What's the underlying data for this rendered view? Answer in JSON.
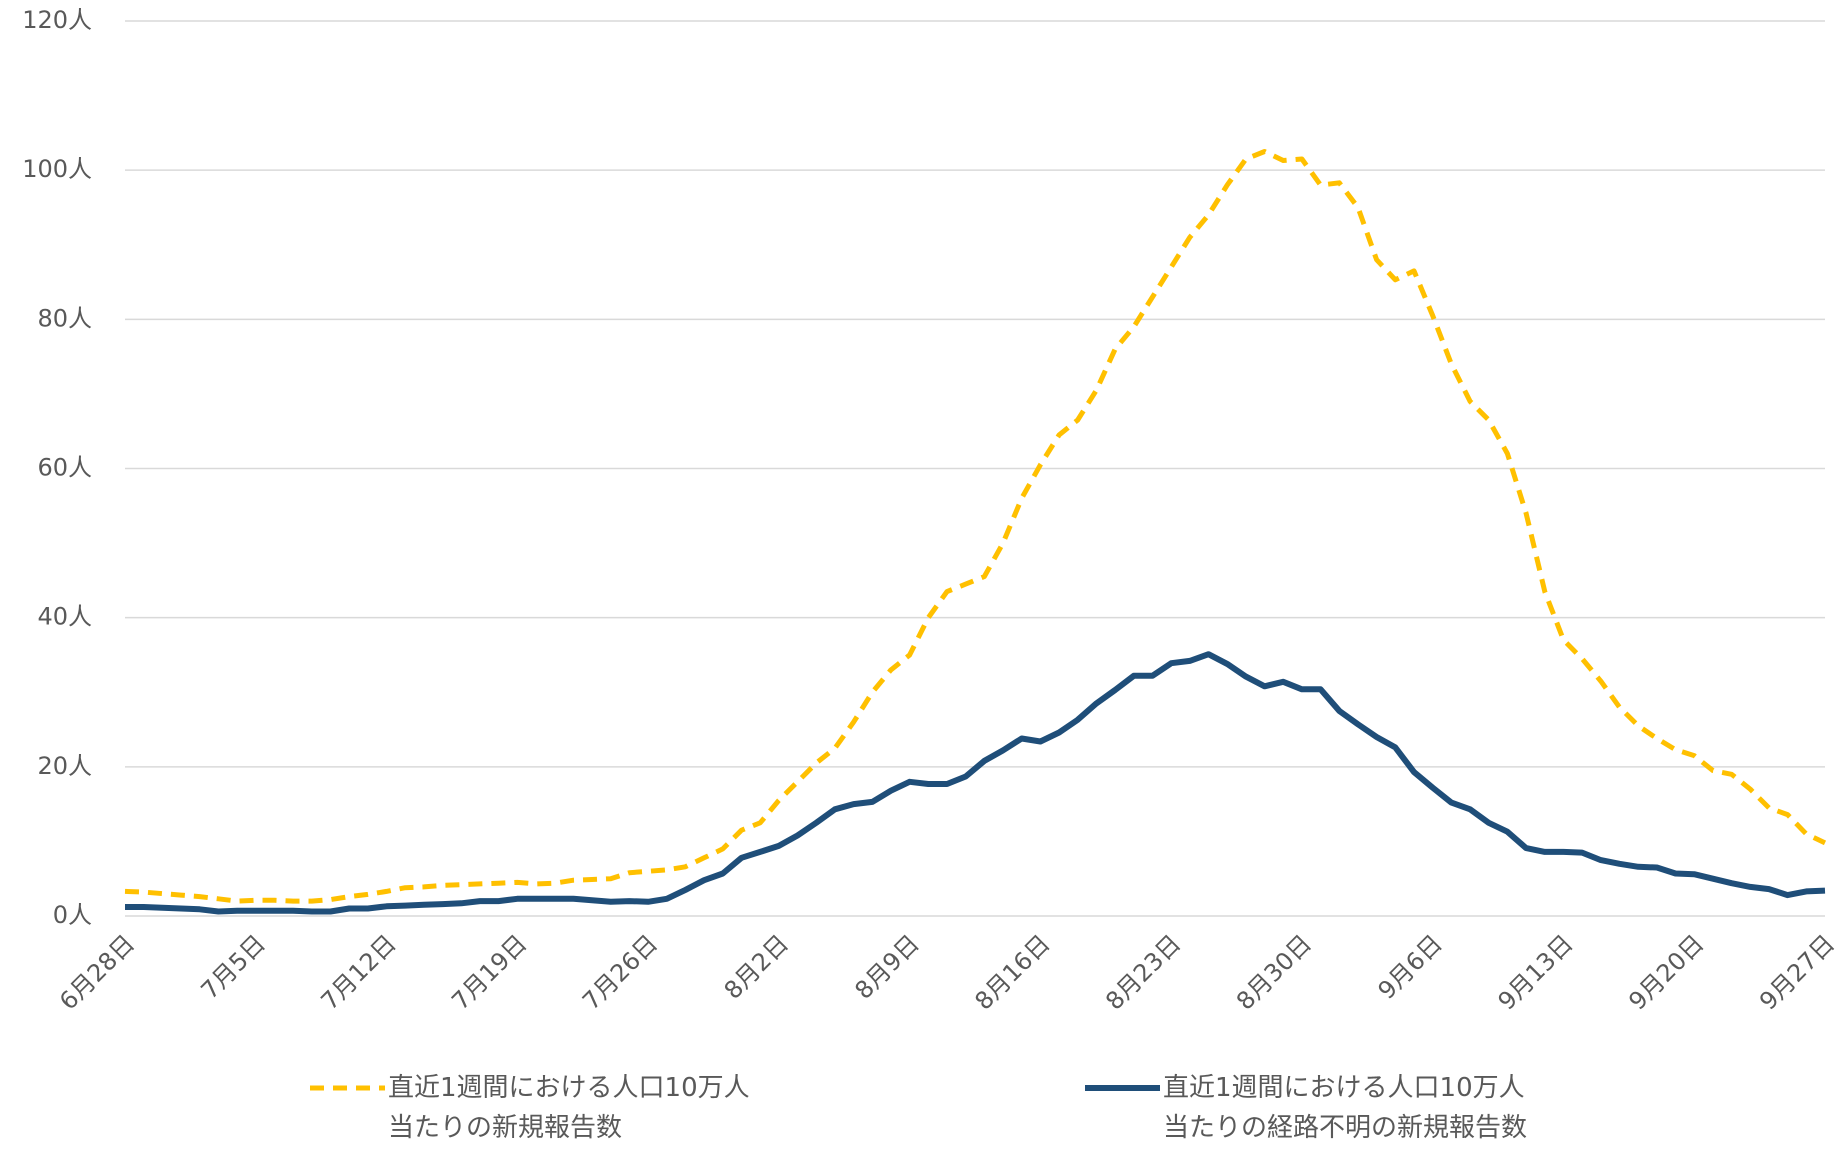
{
  "chart_data": {
    "type": "line",
    "categories": [
      "6月28日",
      null,
      null,
      null,
      null,
      null,
      null,
      "7月5日",
      null,
      null,
      null,
      null,
      null,
      null,
      "7月12日",
      null,
      null,
      null,
      null,
      null,
      null,
      "7月19日",
      null,
      null,
      null,
      null,
      null,
      null,
      "7月26日",
      null,
      null,
      null,
      null,
      null,
      null,
      "8月2日",
      null,
      null,
      null,
      null,
      null,
      null,
      "8月9日",
      null,
      null,
      null,
      null,
      null,
      null,
      "8月16日",
      null,
      null,
      null,
      null,
      null,
      null,
      "8月23日",
      null,
      null,
      null,
      null,
      null,
      null,
      "8月30日",
      null,
      null,
      null,
      null,
      null,
      null,
      "9月6日",
      null,
      null,
      null,
      null,
      null,
      null,
      "9月13日",
      null,
      null,
      null,
      null,
      null,
      null,
      "9月20日",
      null,
      null,
      null,
      null,
      null,
      null,
      "9月27日"
    ],
    "series": [
      {
        "name": "直近1週間における人口10万人\n当たりの新規報告数",
        "color": "#FFC000",
        "dash": true,
        "values": [
          3.3,
          3.2,
          3.0,
          2.8,
          2.6,
          2.3,
          2.0,
          2.1,
          2.1,
          2.0,
          2.0,
          2.2,
          2.6,
          2.9,
          3.3,
          3.8,
          3.9,
          4.1,
          4.2,
          4.3,
          4.4,
          4.5,
          4.3,
          4.4,
          4.8,
          4.9,
          5.0,
          5.8,
          6.0,
          6.2,
          6.6,
          7.8,
          9.0,
          11.5,
          12.5,
          15.5,
          18,
          20.5,
          22.5,
          26,
          30,
          33,
          35,
          40,
          43.5,
          44.5,
          45.5,
          50,
          56,
          60.5,
          64.5,
          66.5,
          70.5,
          76,
          79,
          83,
          87,
          91,
          94,
          98,
          101.5,
          102.5,
          101.3,
          101.5,
          98,
          98.3,
          95,
          88,
          85.3,
          86.5,
          80.5,
          74,
          69,
          66.5,
          62,
          54,
          43.5,
          37,
          34.5,
          31.5,
          28,
          25.5,
          23.8,
          22.3,
          21.5,
          19.5,
          19,
          17,
          14.5,
          13.6,
          11,
          9.8
        ]
      },
      {
        "name": "直近1週間における人口10万人\n当たりの経路不明の新規報告数",
        "color": "#1F4E79",
        "dash": false,
        "values": [
          1.2,
          1.2,
          1.1,
          1.0,
          0.9,
          0.6,
          0.7,
          0.7,
          0.7,
          0.7,
          0.6,
          0.6,
          1.0,
          1.0,
          1.3,
          1.4,
          1.5,
          1.6,
          1.7,
          2.0,
          2.0,
          2.3,
          2.3,
          2.3,
          2.3,
          2.1,
          1.9,
          2.0,
          1.9,
          2.3,
          3.5,
          4.8,
          5.7,
          7.8,
          8.6,
          9.4,
          10.8,
          12.5,
          14.3,
          15,
          15.3,
          16.8,
          18,
          17.7,
          17.7,
          18.7,
          20.8,
          22.2,
          23.8,
          23.4,
          24.6,
          26.3,
          28.5,
          30.3,
          32.2,
          32.2,
          33.9,
          34.2,
          35.1,
          33.8,
          32.1,
          30.8,
          31.4,
          30.4,
          30.4,
          27.5,
          25.7,
          24,
          22.6,
          19.3,
          17.2,
          15.2,
          14.3,
          12.5,
          11.3,
          9.1,
          8.6,
          8.6,
          8.5,
          7.5,
          7,
          6.6,
          6.5,
          5.7,
          5.6,
          5,
          4.4,
          3.9,
          3.6,
          2.8,
          3.3,
          3.4
        ]
      }
    ],
    "ylim": [
      0,
      120
    ],
    "yticks": [
      {
        "value": 0,
        "label": "0人"
      },
      {
        "value": 20,
        "label": "20人"
      },
      {
        "value": 40,
        "label": "40人"
      },
      {
        "value": 60,
        "label": "60人"
      },
      {
        "value": 80,
        "label": "80人"
      },
      {
        "value": 100,
        "label": "100人"
      },
      {
        "value": 120,
        "label": "120人"
      }
    ],
    "grid": true,
    "legend": "bottom"
  }
}
